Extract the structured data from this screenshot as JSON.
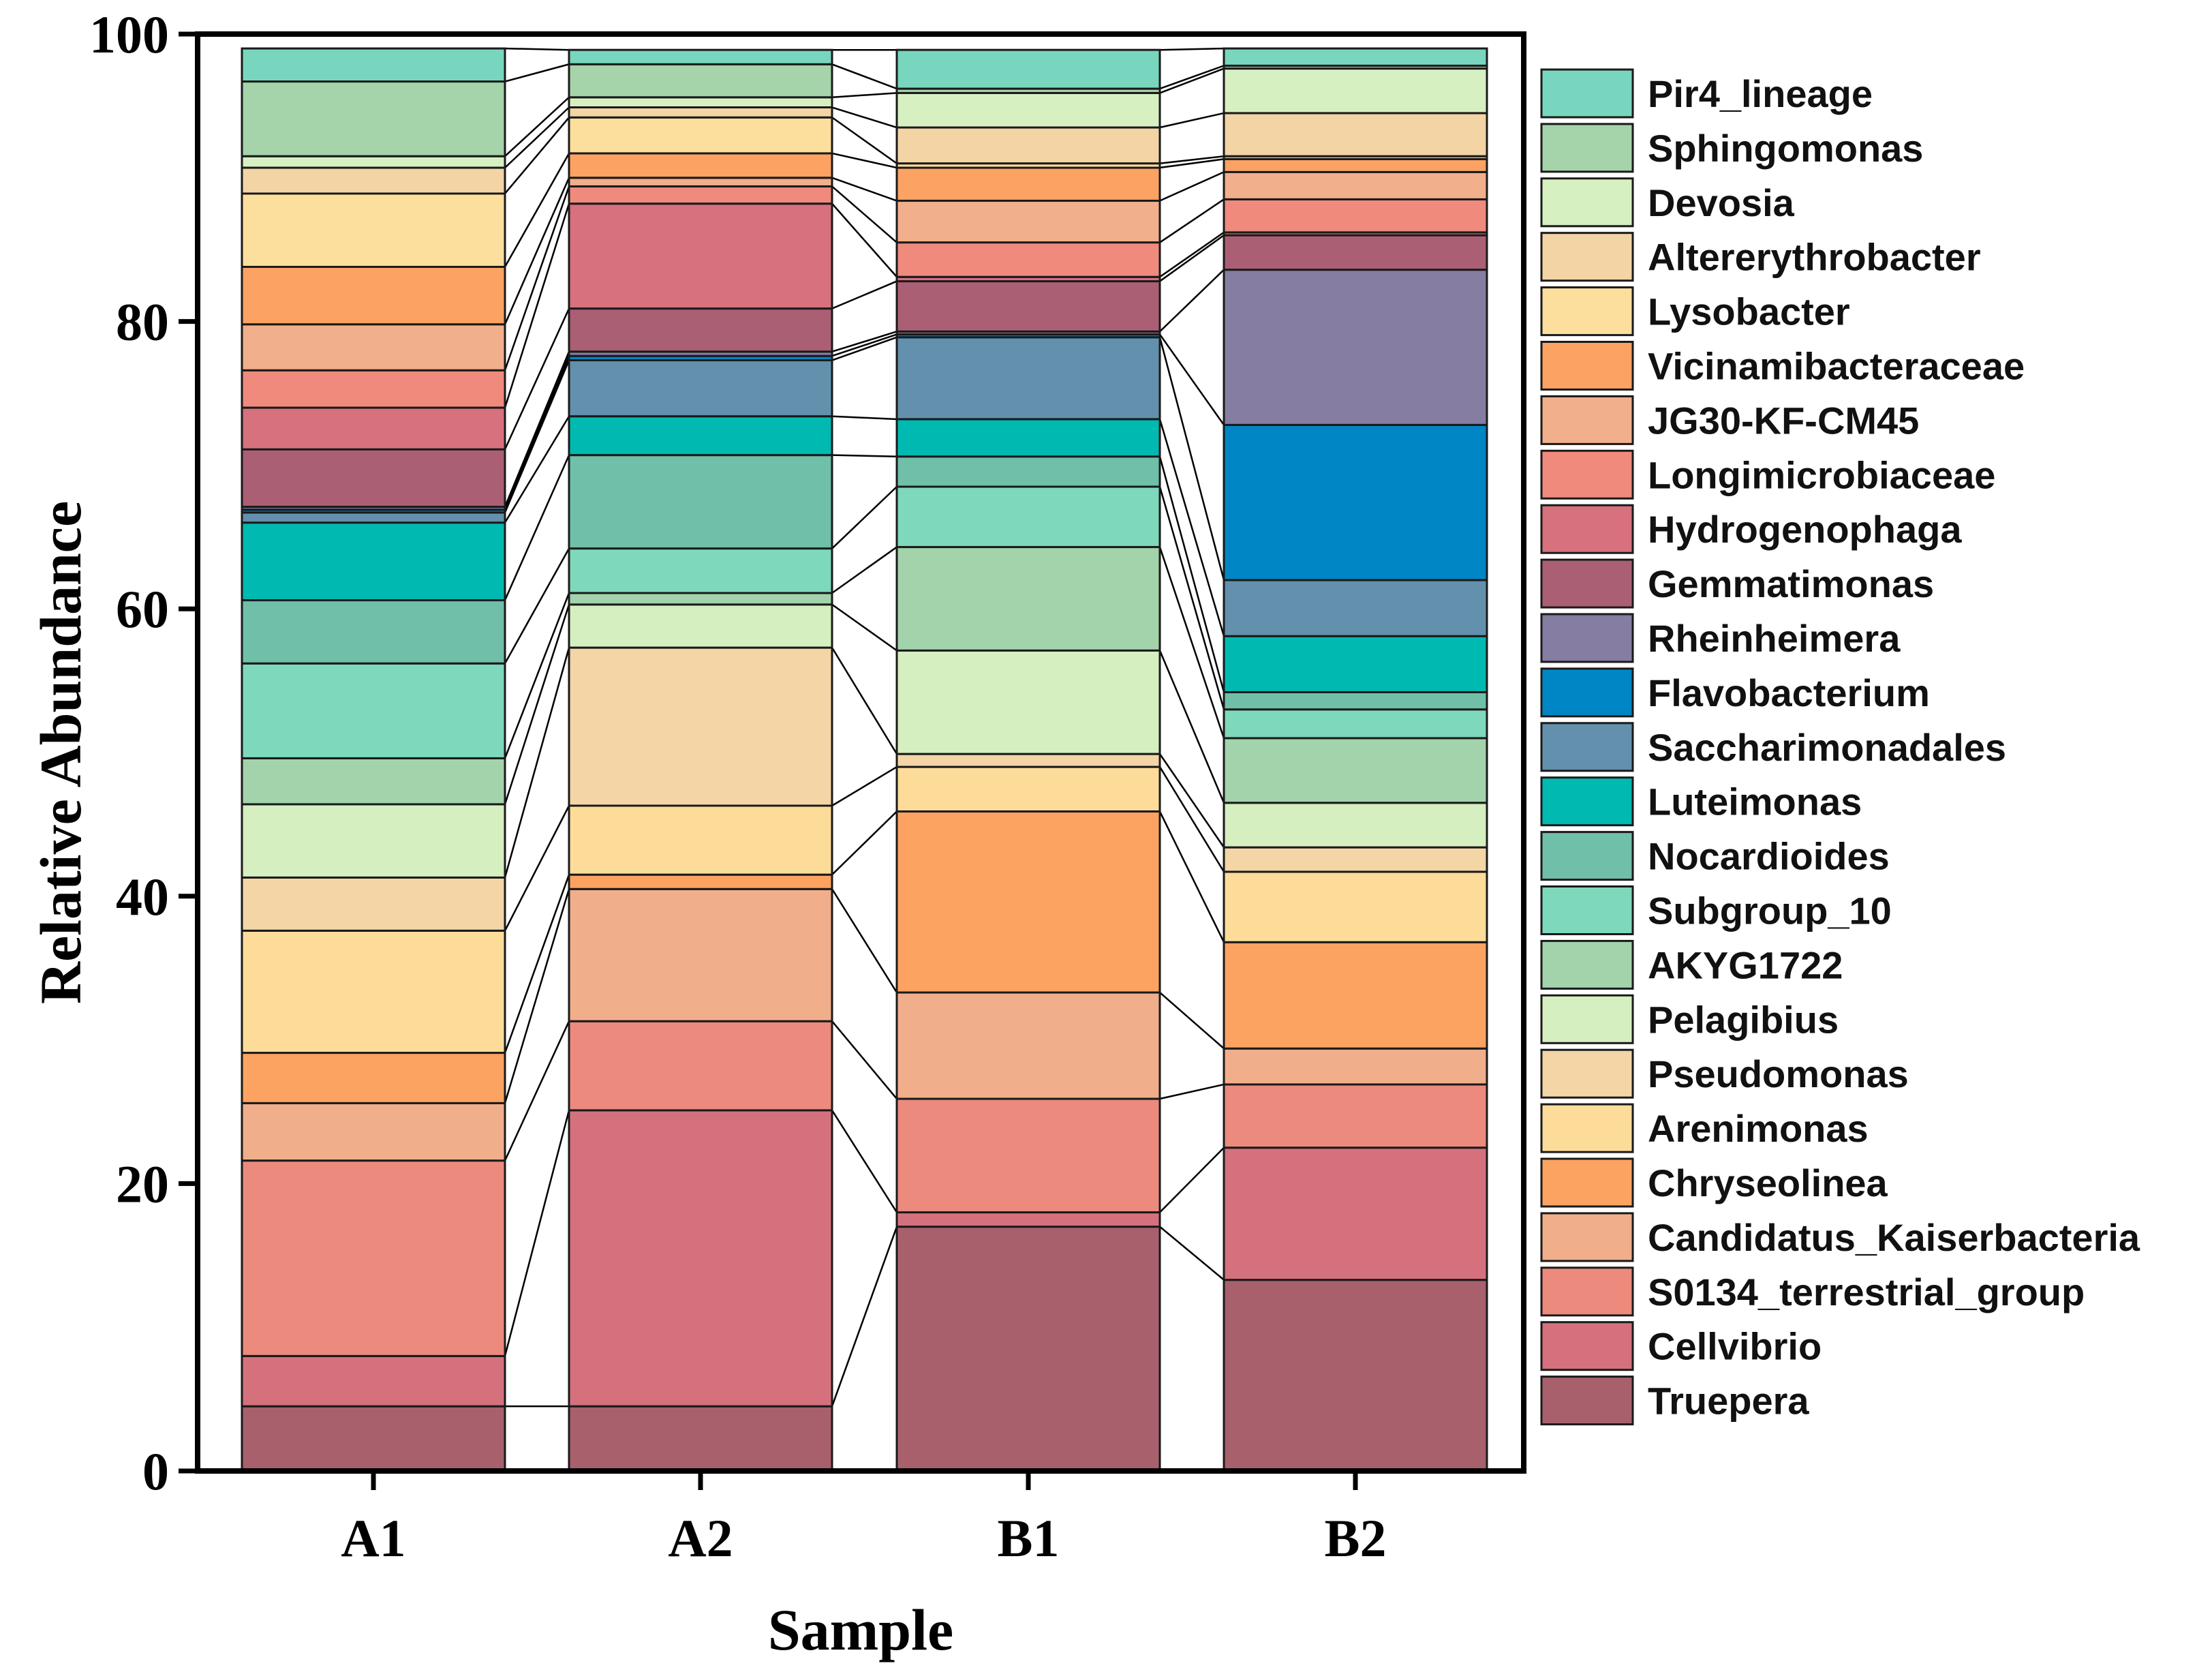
{
  "chart_data": {
    "type": "bar",
    "stacked": true,
    "xlabel": "Sample",
    "ylabel": "Relative Abundance",
    "ylim": [
      0,
      100
    ],
    "yticks": [
      0,
      20,
      40,
      60,
      80,
      100
    ],
    "categories": [
      "A1",
      "A2",
      "B1",
      "B2"
    ],
    "legend_position": "right",
    "series": [
      {
        "name": "Truepera",
        "color": "#A8606D",
        "values": [
          4.5,
          4.5,
          17.0,
          13.3
        ]
      },
      {
        "name": "Cellvibrio",
        "color": "#D5717D",
        "values": [
          3.5,
          20.6,
          1.0,
          9.2
        ]
      },
      {
        "name": "S0134_terrestrial_group",
        "color": "#EC8A7D",
        "values": [
          13.6,
          6.2,
          7.9,
          4.4
        ]
      },
      {
        "name": "Candidatus_Kaiserbacteria",
        "color": "#F1AE8B",
        "values": [
          4.0,
          9.2,
          7.4,
          2.5
        ]
      },
      {
        "name": "Chryseolinea",
        "color": "#FCA361",
        "values": [
          3.5,
          1.0,
          12.6,
          7.4
        ]
      },
      {
        "name": "Arenimonas",
        "color": "#FDDC9A",
        "values": [
          8.5,
          4.8,
          3.1,
          4.9
        ]
      },
      {
        "name": "Pseudomonas",
        "color": "#F3D5A6",
        "values": [
          3.7,
          11.0,
          0.9,
          1.7
        ]
      },
      {
        "name": "Pelagibius",
        "color": "#D5EFC0",
        "values": [
          5.1,
          3.0,
          7.2,
          3.1
        ]
      },
      {
        "name": "AKYG1722",
        "color": "#A3D3AB",
        "values": [
          3.2,
          0.8,
          7.2,
          4.5
        ]
      },
      {
        "name": "Subgroup_10",
        "color": "#7ED8BC",
        "values": [
          6.6,
          3.1,
          4.2,
          2.0
        ]
      },
      {
        "name": "Nocardioides",
        "color": "#6FBFA9",
        "values": [
          4.4,
          6.5,
          2.1,
          1.2
        ]
      },
      {
        "name": "Luteimonas",
        "color": "#00BAB1",
        "values": [
          5.4,
          2.7,
          2.6,
          3.9
        ]
      },
      {
        "name": "Saccharimonadales",
        "color": "#6390AD",
        "values": [
          0.7,
          3.9,
          5.7,
          3.9
        ]
      },
      {
        "name": "Flavobacterium",
        "color": "#0086C4",
        "values": [
          0.2,
          0.3,
          0.2,
          10.8
        ]
      },
      {
        "name": "Rheinheimera",
        "color": "#857DA2",
        "values": [
          0.2,
          0.3,
          0.2,
          10.8
        ]
      },
      {
        "name": "Gemmatimonas",
        "color": "#AB5F74",
        "values": [
          4.0,
          3.0,
          3.5,
          2.4
        ]
      },
      {
        "name": "Hydrogenophaga",
        "color": "#D6717D",
        "values": [
          2.9,
          7.3,
          0.3,
          0.2
        ]
      },
      {
        "name": "Longimicrobiaceae",
        "color": "#EF8A7D",
        "values": [
          2.6,
          1.2,
          2.4,
          2.3
        ]
      },
      {
        "name": "JG30-KF-CM45",
        "color": "#F2AF8B",
        "values": [
          3.2,
          0.6,
          2.9,
          1.9
        ]
      },
      {
        "name": "Vicinamibacteraceae",
        "color": "#FCA262",
        "values": [
          4.0,
          1.7,
          2.3,
          0.9
        ]
      },
      {
        "name": "Lysobacter",
        "color": "#FDDF9D",
        "values": [
          5.1,
          2.5,
          0.3,
          0.2
        ]
      },
      {
        "name": "Altererythrobacter",
        "color": "#F3D4A5",
        "values": [
          1.8,
          0.7,
          2.5,
          3.0
        ]
      },
      {
        "name": "Devosia",
        "color": "#D7F0C2",
        "values": [
          0.8,
          0.7,
          2.4,
          3.1
        ]
      },
      {
        "name": "Sphingomonas",
        "color": "#A5D3AA",
        "values": [
          5.2,
          2.3,
          0.3,
          0.2
        ]
      },
      {
        "name": "Pir4_lineage",
        "color": "#78D6BE",
        "values": [
          2.3,
          1.0,
          2.7,
          1.2
        ]
      }
    ]
  }
}
